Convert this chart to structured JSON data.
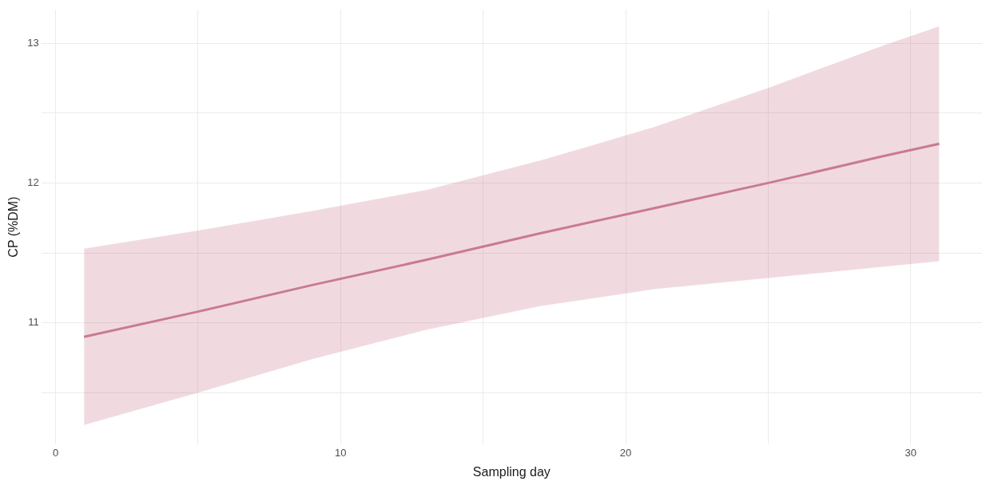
{
  "chart_data": {
    "type": "line",
    "xlabel": "Sampling day",
    "ylabel": "CP (%DM)",
    "xlim": [
      -0.5,
      32.5
    ],
    "ylim": [
      10.13,
      13.24
    ],
    "xticks": [
      0,
      {
        "value": 5,
        "label": null
      },
      10,
      {
        "value": 15,
        "label": null
      },
      20,
      {
        "value": 25,
        "label": null
      },
      30
    ],
    "yticks": [
      {
        "value": 10.5,
        "label": null
      },
      11,
      {
        "value": 11.5,
        "label": null
      },
      12,
      {
        "value": 12.5,
        "label": null
      },
      13
    ],
    "grid": true,
    "legend": false,
    "marker": "none",
    "line_style": "solid",
    "series": [
      {
        "color": "#c97b8f",
        "x": [
          1,
          5,
          9,
          13,
          17,
          21,
          25,
          29,
          31
        ],
        "values": [
          10.9,
          11.08,
          11.27,
          11.45,
          11.64,
          11.82,
          12.0,
          12.19,
          12.28
        ],
        "lower": [
          10.27,
          10.5,
          10.74,
          10.95,
          11.12,
          11.24,
          11.32,
          11.4,
          11.44
        ],
        "upper": [
          11.53,
          11.66,
          11.8,
          11.95,
          12.16,
          12.4,
          12.68,
          12.98,
          13.12
        ]
      }
    ]
  }
}
